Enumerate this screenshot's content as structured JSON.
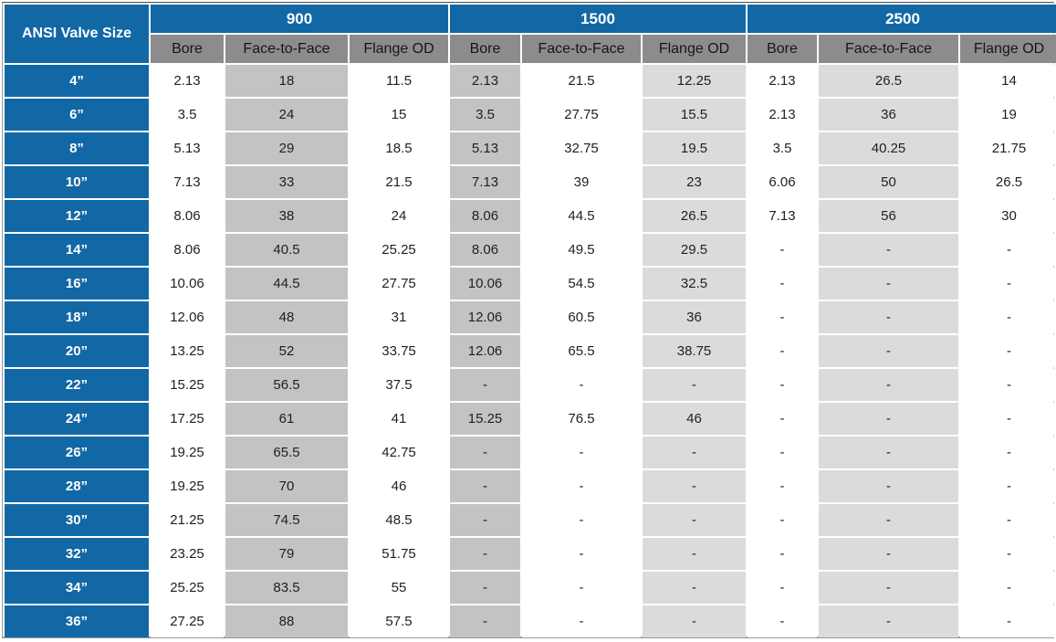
{
  "table": {
    "corner_header": "ANSI Valve Size",
    "groups": [
      {
        "label": "900",
        "columns": [
          "Bore",
          "Face-to-Face",
          "Flange OD"
        ]
      },
      {
        "label": "1500",
        "columns": [
          "Bore",
          "Face-to-Face",
          "Flange OD"
        ]
      },
      {
        "label": "2500",
        "columns": [
          "Bore",
          "Face-to-Face",
          "Flange OD"
        ]
      }
    ],
    "column_shading": [
      "white",
      "mid",
      "white",
      "mid",
      "white",
      "light",
      "white",
      "light",
      "white"
    ],
    "rows": [
      {
        "size": "4”",
        "values": [
          "2.13",
          "18",
          "11.5",
          "2.13",
          "21.5",
          "12.25",
          "2.13",
          "26.5",
          "14"
        ]
      },
      {
        "size": "6”",
        "values": [
          "3.5",
          "24",
          "15",
          "3.5",
          "27.75",
          "15.5",
          "2.13",
          "36",
          "19"
        ]
      },
      {
        "size": "8”",
        "values": [
          "5.13",
          "29",
          "18.5",
          "5.13",
          "32.75",
          "19.5",
          "3.5",
          "40.25",
          "21.75"
        ]
      },
      {
        "size": "10”",
        "values": [
          "7.13",
          "33",
          "21.5",
          "7.13",
          "39",
          "23",
          "6.06",
          "50",
          "26.5"
        ]
      },
      {
        "size": "12”",
        "values": [
          "8.06",
          "38",
          "24",
          "8.06",
          "44.5",
          "26.5",
          "7.13",
          "56",
          "30"
        ]
      },
      {
        "size": "14”",
        "values": [
          "8.06",
          "40.5",
          "25.25",
          "8.06",
          "49.5",
          "29.5",
          "-",
          "-",
          "-"
        ]
      },
      {
        "size": "16”",
        "values": [
          "10.06",
          "44.5",
          "27.75",
          "10.06",
          "54.5",
          "32.5",
          "-",
          "-",
          "-"
        ]
      },
      {
        "size": "18”",
        "values": [
          "12.06",
          "48",
          "31",
          "12.06",
          "60.5",
          "36",
          "-",
          "-",
          "-"
        ]
      },
      {
        "size": "20”",
        "values": [
          "13.25",
          "52",
          "33.75",
          "12.06",
          "65.5",
          "38.75",
          "-",
          "-",
          "-"
        ]
      },
      {
        "size": "22”",
        "values": [
          "15.25",
          "56.5",
          "37.5",
          "-",
          "-",
          "-",
          "-",
          "-",
          "-"
        ]
      },
      {
        "size": "24”",
        "values": [
          "17.25",
          "61",
          "41",
          "15.25",
          "76.5",
          "46",
          "-",
          "-",
          "-"
        ]
      },
      {
        "size": "26”",
        "values": [
          "19.25",
          "65.5",
          "42.75",
          "-",
          "-",
          "-",
          "-",
          "-",
          "-"
        ]
      },
      {
        "size": "28”",
        "values": [
          "19.25",
          "70",
          "46",
          "-",
          "-",
          "-",
          "-",
          "-",
          "-"
        ]
      },
      {
        "size": "30”",
        "values": [
          "21.25",
          "74.5",
          "48.5",
          "-",
          "-",
          "-",
          "-",
          "-",
          "-"
        ]
      },
      {
        "size": "32”",
        "values": [
          "23.25",
          "79",
          "51.75",
          "-",
          "-",
          "-",
          "-",
          "-",
          "-"
        ]
      },
      {
        "size": "34”",
        "values": [
          "25.25",
          "83.5",
          "55",
          "-",
          "-",
          "-",
          "-",
          "-",
          "-"
        ]
      },
      {
        "size": "36”",
        "values": [
          "27.25",
          "88",
          "57.5",
          "-",
          "-",
          "-",
          "-",
          "-",
          "-"
        ]
      }
    ],
    "colors": {
      "header_blue": "#1268a5",
      "subheader_gray": "#8c8c8c",
      "column_mid_gray": "#c3c3c3",
      "column_light_gray": "#dbdbdb",
      "text": "#1f1f1f"
    }
  }
}
